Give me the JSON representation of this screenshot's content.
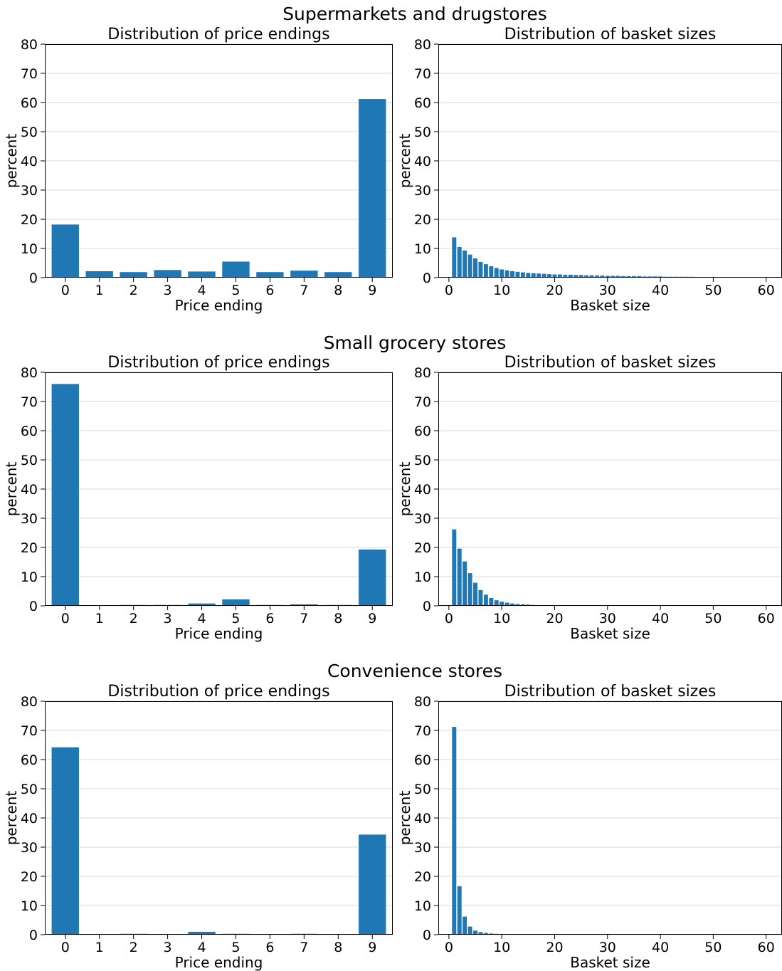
{
  "chart_data": [
    {
      "group_title": "Supermarkets and drugstores",
      "price_endings": {
        "type": "bar",
        "title": "Distribution of price endings",
        "xlabel": "Price ending",
        "ylabel": "percent",
        "categories": [
          "0",
          "1",
          "2",
          "3",
          "4",
          "5",
          "6",
          "7",
          "8",
          "9"
        ],
        "values": [
          18.2,
          2.2,
          1.9,
          2.6,
          2.1,
          5.5,
          1.9,
          2.4,
          1.9,
          61.2
        ],
        "ylim": [
          0,
          80
        ],
        "yticks": [
          0,
          10,
          20,
          30,
          40,
          50,
          60,
          70,
          80
        ],
        "grid": "horizontal",
        "color": "#1f77b4"
      },
      "basket_sizes": {
        "type": "bar",
        "title": "Distribution of basket sizes",
        "xlabel": "Basket size",
        "ylabel": "percent",
        "x": [
          1,
          2,
          3,
          4,
          5,
          6,
          7,
          8,
          9,
          10,
          11,
          12,
          13,
          14,
          15,
          16,
          17,
          18,
          19,
          20,
          21,
          22,
          23,
          24,
          25,
          26,
          27,
          28,
          29,
          30,
          31,
          32,
          33,
          34,
          35,
          36,
          37,
          38,
          39,
          40,
          41,
          42,
          43,
          44,
          45,
          46,
          47,
          48,
          49,
          50,
          51,
          52,
          53,
          54,
          55,
          56,
          57,
          58,
          59,
          60
        ],
        "values": [
          13.8,
          10.5,
          9.3,
          7.9,
          6.6,
          5.4,
          4.6,
          3.9,
          3.3,
          2.8,
          2.5,
          2.2,
          2.0,
          1.8,
          1.6,
          1.5,
          1.4,
          1.3,
          1.2,
          1.1,
          1.1,
          1.0,
          1.0,
          0.9,
          0.9,
          0.8,
          0.8,
          0.7,
          0.7,
          0.6,
          0.6,
          0.6,
          0.5,
          0.5,
          0.5,
          0.5,
          0.4,
          0.4,
          0.4,
          0.4,
          0.3,
          0.3,
          0.3,
          0.3,
          0.3,
          0.3,
          0.2,
          0.2,
          0.2,
          0.2,
          0.2,
          0.2,
          0.2,
          0.2,
          0.1,
          0.1,
          0.1,
          0.1,
          0.1,
          0.1
        ],
        "ylim": [
          0,
          80
        ],
        "xlim": [
          -2,
          63
        ],
        "xticks": [
          0,
          10,
          20,
          30,
          40,
          50,
          60
        ],
        "yticks": [
          0,
          10,
          20,
          30,
          40,
          50,
          60,
          70,
          80
        ],
        "grid": "horizontal",
        "color": "#1f77b4"
      }
    },
    {
      "group_title": "Small grocery stores",
      "price_endings": {
        "type": "bar",
        "title": "Distribution of price endings",
        "xlabel": "Price ending",
        "ylabel": "percent",
        "categories": [
          "0",
          "1",
          "2",
          "3",
          "4",
          "5",
          "6",
          "7",
          "8",
          "9"
        ],
        "values": [
          76.0,
          0.0,
          0.3,
          0.3,
          0.8,
          2.2,
          0.3,
          0.5,
          0.3,
          19.3
        ],
        "ylim": [
          0,
          80
        ],
        "yticks": [
          0,
          10,
          20,
          30,
          40,
          50,
          60,
          70,
          80
        ],
        "grid": "horizontal",
        "color": "#1f77b4"
      },
      "basket_sizes": {
        "type": "bar",
        "title": "Distribution of basket sizes",
        "xlabel": "Basket size",
        "ylabel": "percent",
        "x": [
          1,
          2,
          3,
          4,
          5,
          6,
          7,
          8,
          9,
          10,
          11,
          12,
          13,
          14,
          15,
          16,
          17,
          18
        ],
        "values": [
          26.2,
          19.6,
          15.2,
          11.2,
          7.9,
          5.4,
          3.8,
          2.7,
          1.9,
          1.4,
          1.1,
          0.8,
          0.6,
          0.5,
          0.4,
          0.3,
          0.2,
          0.2
        ],
        "ylim": [
          0,
          80
        ],
        "xlim": [
          -2,
          63
        ],
        "xticks": [
          0,
          10,
          20,
          30,
          40,
          50,
          60
        ],
        "yticks": [
          0,
          10,
          20,
          30,
          40,
          50,
          60,
          70,
          80
        ],
        "grid": "horizontal",
        "color": "#1f77b4"
      }
    },
    {
      "group_title": "Convenience stores",
      "price_endings": {
        "type": "bar",
        "title": "Distribution of price endings",
        "xlabel": "Price ending",
        "ylabel": "percent",
        "categories": [
          "0",
          "1",
          "2",
          "3",
          "4",
          "5",
          "6",
          "7",
          "8",
          "9"
        ],
        "values": [
          64.2,
          0.0,
          0.3,
          0.0,
          1.0,
          0.3,
          0.0,
          0.3,
          0.0,
          34.3
        ],
        "ylim": [
          0,
          80
        ],
        "yticks": [
          0,
          10,
          20,
          30,
          40,
          50,
          60,
          70,
          80
        ],
        "grid": "horizontal",
        "color": "#1f77b4"
      },
      "basket_sizes": {
        "type": "bar",
        "title": "Distribution of basket sizes",
        "xlabel": "Basket size",
        "ylabel": "percent",
        "x": [
          1,
          2,
          3,
          4,
          5,
          6,
          7,
          8,
          9,
          10,
          11
        ],
        "values": [
          71.2,
          16.6,
          6.2,
          2.8,
          1.4,
          0.9,
          0.6,
          0.4,
          0.3,
          0.2,
          0.2
        ],
        "ylim": [
          0,
          80
        ],
        "xlim": [
          -2,
          63
        ],
        "xticks": [
          0,
          10,
          20,
          30,
          40,
          50,
          60
        ],
        "yticks": [
          0,
          10,
          20,
          30,
          40,
          50,
          60,
          70,
          80
        ],
        "grid": "horizontal",
        "color": "#1f77b4"
      }
    }
  ]
}
